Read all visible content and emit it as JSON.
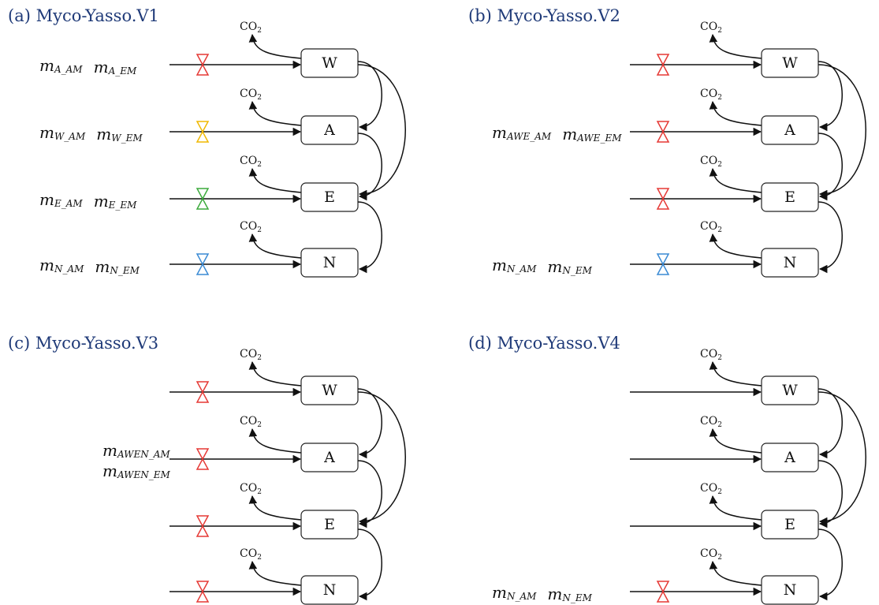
{
  "colors": {
    "title": "#1f3a78",
    "red": "#e53935",
    "yellow": "#f0b800",
    "green": "#3caa3c",
    "blue": "#3a8ad4"
  },
  "co2": {
    "base": "CO",
    "sub": "2"
  },
  "panels": [
    {
      "title": "(a) Myco-Yasso.V1",
      "pools": [
        "W",
        "A",
        "E",
        "N"
      ],
      "valves": [
        "red",
        "yellow",
        "green",
        "blue"
      ],
      "labels": [
        {
          "pool": 0,
          "lines": [
            [
              {
                "m": "m",
                "s": "A_AM"
              },
              {
                "m": "m",
                "s": "A_EM"
              }
            ]
          ]
        },
        {
          "pool": 1,
          "lines": [
            [
              {
                "m": "m",
                "s": "W_AM"
              },
              {
                "m": "m",
                "s": "W_EM"
              }
            ]
          ]
        },
        {
          "pool": 2,
          "lines": [
            [
              {
                "m": "m",
                "s": "E_AM"
              },
              {
                "m": "m",
                "s": "E_EM"
              }
            ]
          ]
        },
        {
          "pool": 3,
          "lines": [
            [
              {
                "m": "m",
                "s": "N_AM"
              },
              {
                "m": "m",
                "s": "N_EM"
              }
            ]
          ]
        }
      ]
    },
    {
      "title": "(b) Myco-Yasso.V2",
      "pools": [
        "W",
        "A",
        "E",
        "N"
      ],
      "valves": [
        "red",
        "red",
        "red",
        "blue"
      ],
      "labels": [
        {
          "pool": 1,
          "lines": [
            [
              {
                "m": "m",
                "s": "AWE_AM"
              },
              {
                "m": "m",
                "s": "AWE_EM"
              }
            ]
          ]
        },
        {
          "pool": 3,
          "lines": [
            [
              {
                "m": "m",
                "s": "N_AM"
              },
              {
                "m": "m",
                "s": "N_EM"
              }
            ]
          ]
        }
      ]
    },
    {
      "title": "(c) Myco-Yasso.V3",
      "pools": [
        "W",
        "A",
        "E",
        "N"
      ],
      "valves": [
        "red",
        "red",
        "red",
        "red"
      ],
      "labels": [
        {
          "pool": 1,
          "lines": [
            [
              {
                "m": "m",
                "s": "AWEN_AM"
              }
            ],
            [
              {
                "m": "m",
                "s": "AWEN_EM"
              }
            ]
          ]
        }
      ]
    },
    {
      "title": "(d) Myco-Yasso.V4",
      "pools": [
        "W",
        "A",
        "E",
        "N"
      ],
      "valves": [
        "none",
        "none",
        "none",
        "red"
      ],
      "labels": [
        {
          "pool": 3,
          "lines": [
            [
              {
                "m": "m",
                "s": "N_AM"
              },
              {
                "m": "m",
                "s": "N_EM"
              }
            ]
          ]
        }
      ]
    }
  ]
}
